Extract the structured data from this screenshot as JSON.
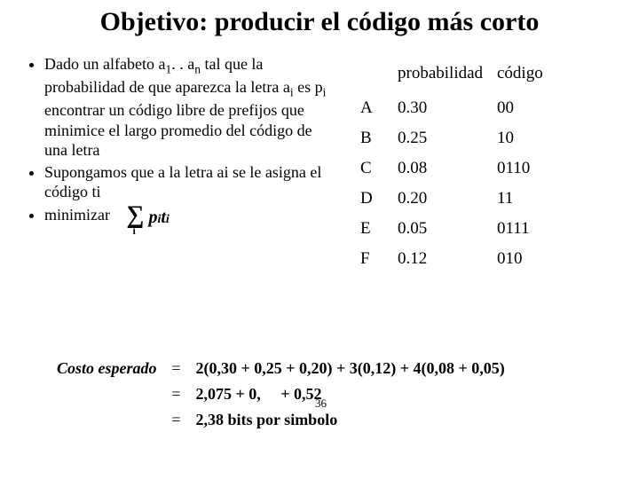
{
  "title": "Objetivo: producir el código más corto",
  "bullets": {
    "b1_pre": "Dado un alfabeto a",
    "b1_s1": "1",
    "b1_mid": ". . a",
    "b1_s2": "n",
    "b1_mid2": "  tal que la probabilidad de que aparezca la letra a",
    "b1_s3": "i",
    "b1_mid3": " es p",
    "b1_s4": "i",
    "b1_post": " encontrar un código libre de prefijos que minimice el largo promedio del código de una letra",
    "b2": "Supongamos que a la letra ai se le asigna el código ti",
    "b3": "minimizar"
  },
  "sigma": {
    "symbol": "∑",
    "sub": "i",
    "term_p": "p",
    "term_pi": "i",
    "term_t": "t",
    "term_ti": "i"
  },
  "table": {
    "h1": "probabilidad",
    "h2": "código",
    "rows": [
      {
        "l": "A",
        "p": "0.30",
        "c": "00"
      },
      {
        "l": "B",
        "p": "0.25",
        "c": "10"
      },
      {
        "l": "C",
        "p": "0.08",
        "c": "0110"
      },
      {
        "l": "D",
        "p": "0.20",
        "c": "11"
      },
      {
        "l": "E",
        "p": "0.05",
        "c": "0111"
      },
      {
        "l": "F",
        "p": "0.12",
        "c": "010"
      }
    ]
  },
  "cost": {
    "label": "Costo esperado",
    "eq": "=",
    "r1": "2(0,30 + 0,25 + 0,20) + 3(0,12) + 4(0,08 + 0,05)",
    "r2a": "2,075 + 0,",
    "r2b": " + 0,52",
    "r3": "2,38 bits por simbolo"
  },
  "pagenum": "36",
  "tinycap": "..."
}
